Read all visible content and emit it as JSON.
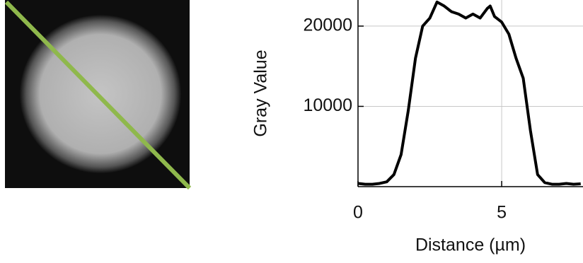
{
  "chart_data": {
    "type": "line",
    "xlabel": "Distance (µm)",
    "ylabel": "Gray Value",
    "x": [
      0,
      0.25,
      0.5,
      0.75,
      1.0,
      1.25,
      1.5,
      1.75,
      2.0,
      2.25,
      2.5,
      2.75,
      3.0,
      3.25,
      3.5,
      3.75,
      4.0,
      4.25,
      4.5,
      4.6,
      4.75,
      5.0,
      5.25,
      5.5,
      5.75,
      6.0,
      6.25,
      6.5,
      6.75,
      7.0,
      7.25,
      7.5,
      7.75
    ],
    "series": [
      {
        "color": "#000000",
        "values": [
          400,
          300,
          300,
          400,
          600,
          1500,
          4000,
          9500,
          16000,
          20000,
          21000,
          23000,
          22500,
          21800,
          21500,
          21000,
          21500,
          21000,
          22200,
          22500,
          21200,
          20500,
          19000,
          16000,
          13500,
          7000,
          1500,
          500,
          300,
          300,
          400,
          300,
          350
        ]
      }
    ],
    "xlim": [
      0,
      7.83
    ],
    "ylim": [
      0,
      23250
    ],
    "xticks": [
      0,
      5
    ],
    "yticks": [
      10000,
      20000
    ],
    "grid": true
  }
}
